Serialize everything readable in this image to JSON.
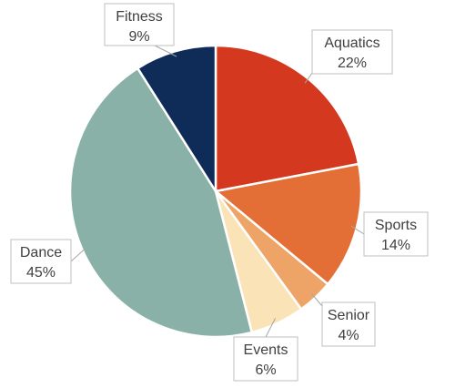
{
  "chart_data": {
    "type": "pie",
    "categories": [
      "Aquatics",
      "Sports",
      "Senior",
      "Events",
      "Dance",
      "Fitness"
    ],
    "values": [
      22,
      14,
      4,
      6,
      45,
      9
    ],
    "labels": [
      "22%",
      "14%",
      "4%",
      "6%",
      "45%",
      "9%"
    ],
    "colors": [
      "#d4391f",
      "#e46f36",
      "#efa467",
      "#fbe3b8",
      "#89b1a8",
      "#0f2c59"
    ],
    "start_angle_deg": 0,
    "direction": "clockwise",
    "legend": "none"
  }
}
